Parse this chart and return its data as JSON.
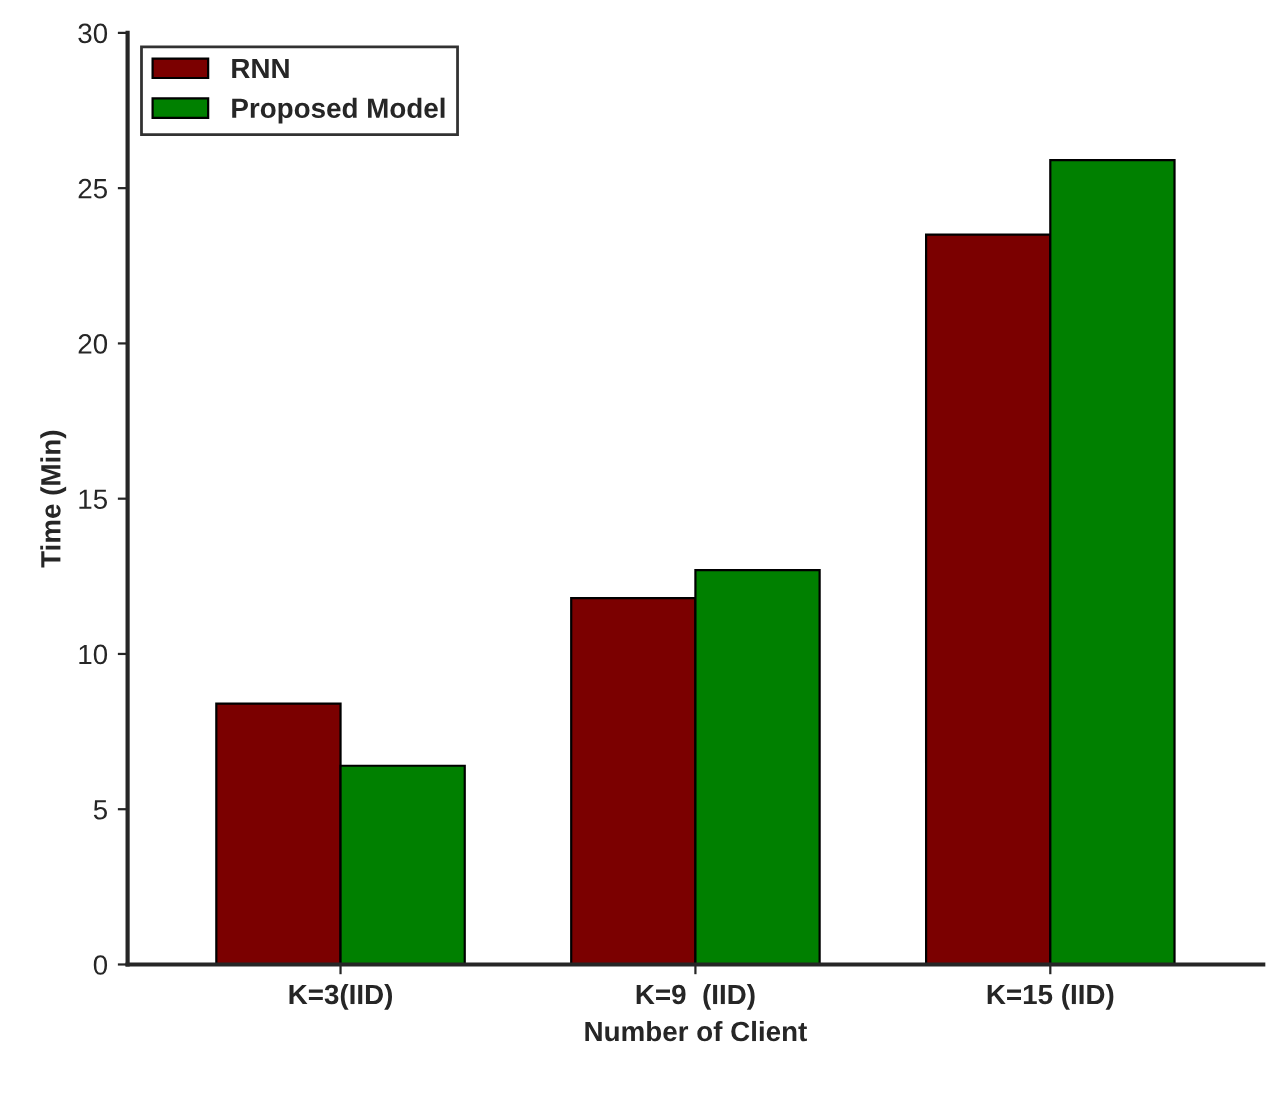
{
  "chart_data": {
    "type": "bar",
    "xlabel": "Number of Client",
    "ylabel": "Time (Min)",
    "categories": [
      "K=3(IID)",
      "K=9  (IID)",
      "K=15 (IID)"
    ],
    "series": [
      {
        "name": "RNN",
        "color": "#7b0000",
        "values": [
          8.4,
          11.8,
          23.5
        ]
      },
      {
        "name": "Proposed Model",
        "color": "#008000",
        "values": [
          6.4,
          12.7,
          25.9
        ]
      }
    ],
    "ylim": [
      0,
      30
    ],
    "yticks": [
      0,
      5,
      10,
      15,
      20,
      25,
      30
    ],
    "legend": "top left",
    "grid": false
  }
}
